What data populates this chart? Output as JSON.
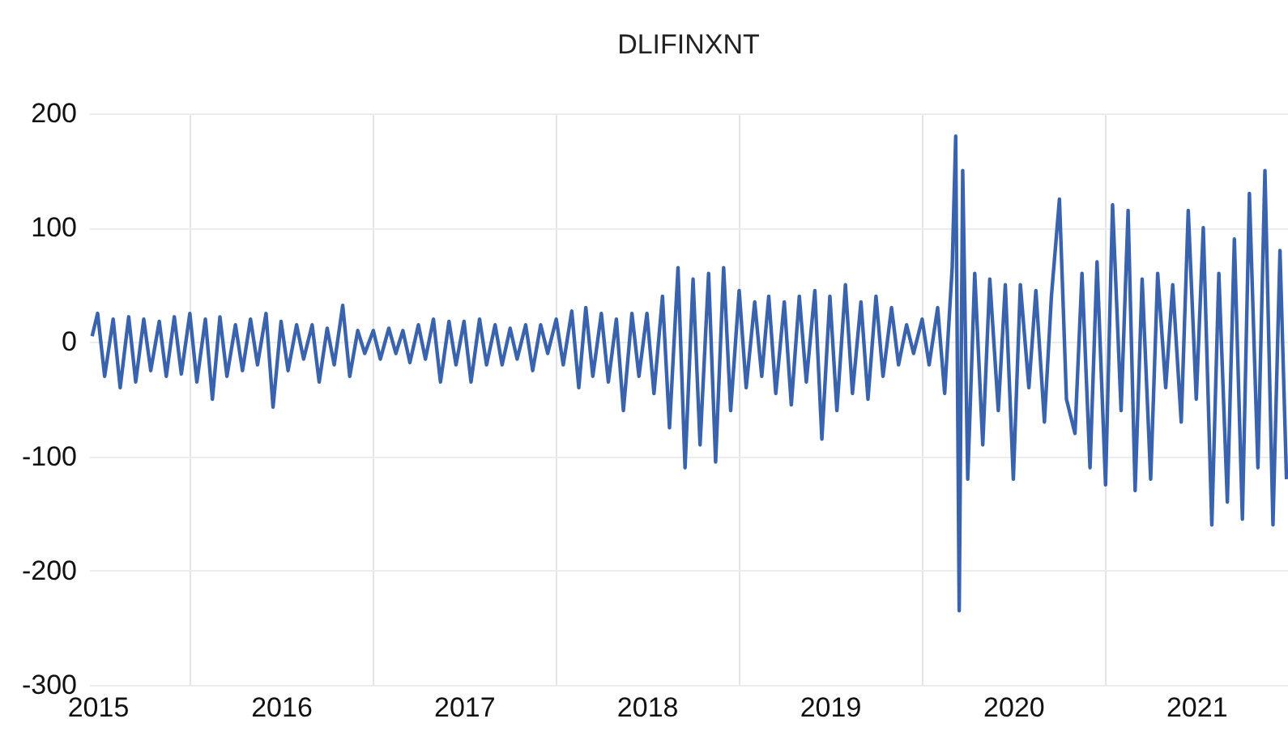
{
  "chart_data": {
    "type": "line",
    "title": "DLIFINXNT",
    "x": [
      "2015-06-20",
      "2015-07-01",
      "2015-07-15",
      "2015-08-01",
      "2015-08-15",
      "2015-09-01",
      "2015-09-15",
      "2015-10-01",
      "2015-10-15",
      "2015-11-01",
      "2015-11-15",
      "2015-12-01",
      "2015-12-15",
      "2016-01-01",
      "2016-01-15",
      "2016-02-01",
      "2016-02-15",
      "2016-03-01",
      "2016-03-15",
      "2016-04-01",
      "2016-04-15",
      "2016-05-01",
      "2016-05-15",
      "2016-06-01",
      "2016-06-15",
      "2016-07-01",
      "2016-07-15",
      "2016-08-01",
      "2016-08-15",
      "2016-09-01",
      "2016-09-15",
      "2016-10-01",
      "2016-10-15",
      "2016-11-01",
      "2016-11-15",
      "2016-12-01",
      "2016-12-15",
      "2017-01-01",
      "2017-01-15",
      "2017-02-01",
      "2017-02-15",
      "2017-03-01",
      "2017-03-15",
      "2017-04-01",
      "2017-04-15",
      "2017-05-01",
      "2017-05-15",
      "2017-06-01",
      "2017-06-15",
      "2017-07-01",
      "2017-07-15",
      "2017-08-01",
      "2017-08-15",
      "2017-09-01",
      "2017-09-15",
      "2017-10-01",
      "2017-10-15",
      "2017-11-01",
      "2017-11-15",
      "2017-12-01",
      "2017-12-15",
      "2018-01-01",
      "2018-01-15",
      "2018-02-01",
      "2018-02-15",
      "2018-03-01",
      "2018-03-15",
      "2018-04-01",
      "2018-04-15",
      "2018-05-01",
      "2018-05-15",
      "2018-06-01",
      "2018-06-15",
      "2018-07-01",
      "2018-07-15",
      "2018-08-01",
      "2018-08-15",
      "2018-09-01",
      "2018-09-15",
      "2018-10-01",
      "2018-10-15",
      "2018-11-01",
      "2018-11-15",
      "2018-12-01",
      "2018-12-15",
      "2019-01-01",
      "2019-01-15",
      "2019-02-01",
      "2019-02-15",
      "2019-03-01",
      "2019-03-15",
      "2019-04-01",
      "2019-04-15",
      "2019-05-01",
      "2019-05-15",
      "2019-06-01",
      "2019-06-15",
      "2019-07-01",
      "2019-07-15",
      "2019-08-01",
      "2019-08-15",
      "2019-09-01",
      "2019-09-15",
      "2019-10-01",
      "2019-10-15",
      "2019-11-01",
      "2019-11-15",
      "2019-12-01",
      "2019-12-15",
      "2020-01-01",
      "2020-01-15",
      "2020-02-01",
      "2020-02-15",
      "2020-03-01",
      "2020-03-08",
      "2020-03-15",
      "2020-03-22",
      "2020-04-01",
      "2020-04-15",
      "2020-05-01",
      "2020-05-15",
      "2020-06-01",
      "2020-06-15",
      "2020-07-01",
      "2020-07-15",
      "2020-08-01",
      "2020-08-15",
      "2020-09-01",
      "2020-09-15",
      "2020-10-01",
      "2020-10-15",
      "2020-11-01",
      "2020-11-15",
      "2020-12-01",
      "2020-12-15",
      "2021-01-01",
      "2021-01-15",
      "2021-02-01",
      "2021-02-15",
      "2021-03-01",
      "2021-03-15",
      "2021-04-01",
      "2021-04-15",
      "2021-05-01",
      "2021-05-15",
      "2021-06-01",
      "2021-06-15",
      "2021-07-01",
      "2021-07-15",
      "2021-08-01",
      "2021-08-15",
      "2021-09-01",
      "2021-09-15",
      "2021-10-01",
      "2021-10-15",
      "2021-11-01",
      "2021-11-15",
      "2021-12-01",
      "2021-12-15",
      "2021-12-28"
    ],
    "series": [
      {
        "color": "#3a63ad",
        "values": [
          5,
          25,
          -30,
          20,
          -40,
          22,
          -35,
          20,
          -25,
          18,
          -30,
          22,
          -28,
          25,
          -35,
          20,
          -50,
          22,
          -30,
          15,
          -25,
          20,
          -20,
          25,
          -57,
          18,
          -25,
          15,
          -15,
          15,
          -35,
          12,
          -20,
          32,
          -30,
          10,
          -10,
          10,
          -15,
          12,
          -10,
          10,
          -18,
          15,
          -15,
          20,
          -35,
          18,
          -20,
          18,
          -35,
          20,
          -20,
          15,
          -20,
          12,
          -15,
          15,
          -25,
          15,
          -10,
          20,
          -20,
          27,
          -40,
          30,
          -30,
          25,
          -35,
          20,
          -60,
          25,
          -30,
          25,
          -45,
          40,
          -75,
          65,
          -110,
          55,
          -90,
          60,
          -105,
          65,
          -60,
          45,
          -40,
          35,
          -30,
          40,
          -45,
          35,
          -55,
          40,
          -35,
          45,
          -85,
          40,
          -60,
          50,
          -45,
          35,
          -50,
          40,
          -30,
          30,
          -20,
          15,
          -10,
          20,
          -20,
          30,
          -45,
          65,
          180,
          -235,
          150,
          -120,
          60,
          -90,
          55,
          -60,
          50,
          -120,
          50,
          -40,
          45,
          -70,
          40,
          125,
          -50,
          -80,
          60,
          -110,
          70,
          -125,
          120,
          -60,
          115,
          -130,
          55,
          -120,
          60,
          -40,
          50,
          -70,
          115,
          -50,
          100,
          -160,
          60,
          -140,
          90,
          -155,
          130,
          -110,
          150,
          -160,
          80,
          -120
        ]
      }
    ],
    "xlim": [
      "2015-06-14",
      "2021-12-31"
    ],
    "xticks": [
      {
        "value": "2015-07-01",
        "label": "2015"
      },
      {
        "value": "2016-01-01",
        "label": null
      },
      {
        "value": "2016-07-01",
        "label": "2016"
      },
      {
        "value": "2017-01-01",
        "label": null
      },
      {
        "value": "2017-07-01",
        "label": "2017"
      },
      {
        "value": "2018-01-01",
        "label": null
      },
      {
        "value": "2018-07-01",
        "label": "2018"
      },
      {
        "value": "2019-01-01",
        "label": null
      },
      {
        "value": "2019-07-01",
        "label": "2019"
      },
      {
        "value": "2020-01-01",
        "label": null
      },
      {
        "value": "2020-07-01",
        "label": "2020"
      },
      {
        "value": "2021-01-01",
        "label": null
      },
      {
        "value": "2021-07-01",
        "label": "2021"
      }
    ],
    "ylim": [
      -300,
      200
    ],
    "yticks": [
      -300,
      -200,
      -100,
      0,
      100,
      200
    ],
    "grid": true,
    "legend": false,
    "line_style": "solid"
  }
}
